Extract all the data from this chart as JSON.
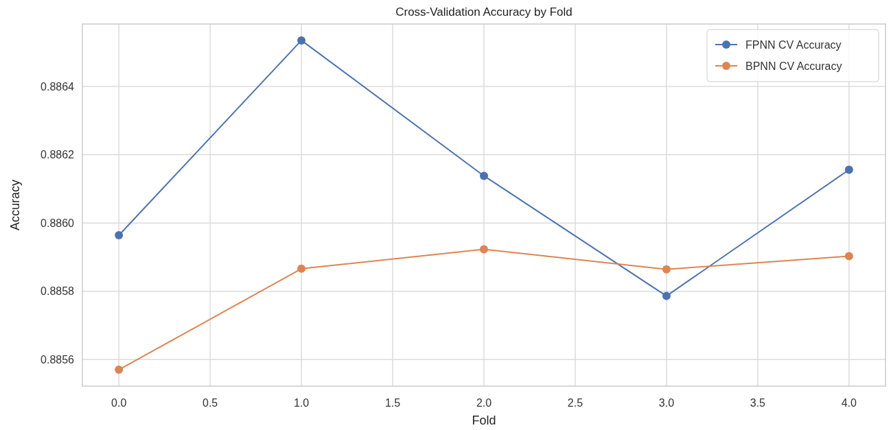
{
  "chart_data": {
    "type": "line",
    "title": "Cross-Validation Accuracy by Fold",
    "xlabel": "Fold",
    "ylabel": "Accuracy",
    "x": [
      0,
      1,
      2,
      3,
      4
    ],
    "series": [
      {
        "name": "FPNN CV Accuracy",
        "color": "#4c72b0",
        "values": [
          0.885964,
          0.886535,
          0.886138,
          0.885786,
          0.886156
        ]
      },
      {
        "name": "BPNN CV Accuracy",
        "color": "#dd8452",
        "values": [
          0.88557,
          0.885866,
          0.885923,
          0.885864,
          0.885903
        ]
      }
    ],
    "xlim": [
      -0.2,
      4.2
    ],
    "xticks": [
      {
        "value": 0,
        "label": "0.0"
      },
      {
        "value": 0.5,
        "label": "0.5"
      },
      {
        "value": 1,
        "label": "1.0"
      },
      {
        "value": 1.5,
        "label": "1.5"
      },
      {
        "value": 2,
        "label": "2.0"
      },
      {
        "value": 2.5,
        "label": "2.5"
      },
      {
        "value": 3,
        "label": "3.0"
      },
      {
        "value": 3.5,
        "label": "3.5"
      },
      {
        "value": 4,
        "label": "4.0"
      }
    ],
    "ylim": [
      0.885522,
      0.886583
    ],
    "yticks": [
      0.8856,
      0.8858,
      {
        "value": 0.886,
        "label": "0.8860"
      },
      0.8862,
      0.8864
    ],
    "grid": true,
    "legend": "top right",
    "marker": "circle",
    "line_style": "solid"
  }
}
